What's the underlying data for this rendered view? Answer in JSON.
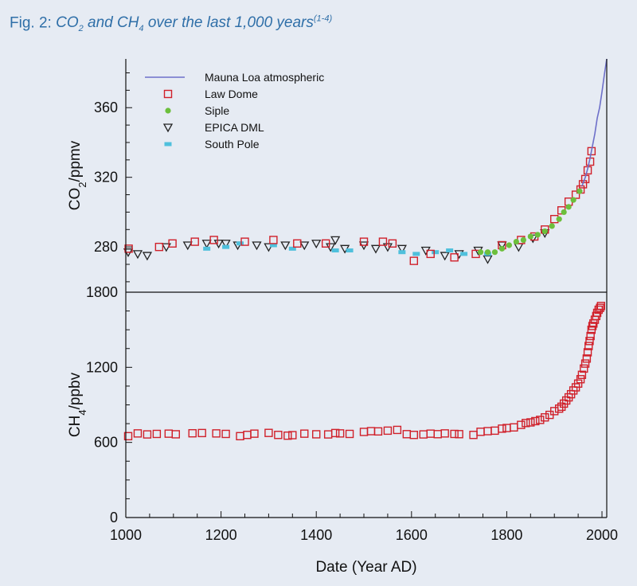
{
  "figure": {
    "label": "Fig. 2:",
    "caption_a": "CO",
    "caption_a_sub": "2",
    "caption_b": " and CH",
    "caption_b_sub": "4",
    "caption_c": " over the last 1,000 years",
    "caption_sup": "(1-4)"
  },
  "colors": {
    "background": "#e6ebf3",
    "mauna_loa": "#6d6fc9",
    "law_dome": "#d0202a",
    "siple": "#6cbf3c",
    "epica": "#222222",
    "south_pole": "#4fc0dc",
    "title": "#2f6fa8"
  },
  "chart_data": [
    {
      "type": "scatter",
      "name": "co2-panel",
      "ylabel_main": "CO",
      "ylabel_sub": "2",
      "ylabel_rest": "/ppmv",
      "xlim": [
        1000,
        2010
      ],
      "ylim": [
        254,
        388
      ],
      "yticks": [
        280,
        320,
        360
      ],
      "legend_position": "top-left",
      "legend": [
        {
          "key": "mauna_loa",
          "label": "Mauna Loa atmospheric",
          "marker": "line"
        },
        {
          "key": "law_dome",
          "label": "Law Dome",
          "marker": "square"
        },
        {
          "key": "siple",
          "label": "Siple",
          "marker": "circle"
        },
        {
          "key": "epica",
          "label": "EPICA DML",
          "marker": "triangle"
        },
        {
          "key": "south_pole",
          "label": "South Pole",
          "marker": "rect"
        }
      ],
      "series": {
        "mauna_loa": {
          "x": [
            1958,
            1965,
            1970,
            1975,
            1980,
            1985,
            1990,
            1995,
            2000,
            2005,
            2010
          ],
          "y": [
            315,
            320,
            325,
            331,
            338,
            345,
            354,
            360,
            369,
            379,
            388
          ]
        },
        "law_dome": {
          "x": [
            1006,
            1070,
            1098,
            1145,
            1185,
            1250,
            1310,
            1360,
            1420,
            1500,
            1540,
            1560,
            1605,
            1640,
            1690,
            1735,
            1790,
            1830,
            1858,
            1880,
            1900,
            1915,
            1930,
            1945,
            1955,
            1960,
            1965,
            1970,
            1975,
            1978
          ],
          "y": [
            279,
            280,
            282,
            283,
            284,
            283,
            284,
            282,
            282,
            283,
            283,
            282,
            272,
            276,
            274,
            276,
            281,
            284,
            286,
            290,
            296,
            301,
            306,
            310,
            313,
            316,
            319,
            324,
            329,
            335
          ]
        },
        "siple": {
          "x": [
            1745,
            1760,
            1775,
            1790,
            1805,
            1820,
            1835,
            1850,
            1865,
            1880,
            1895,
            1910,
            1920,
            1930,
            1940,
            1953
          ],
          "y": [
            277,
            277,
            277,
            279,
            281,
            283,
            284,
            286,
            287,
            289,
            292,
            296,
            300,
            303,
            307,
            312
          ]
        },
        "epica": {
          "x": [
            1005,
            1025,
            1045,
            1085,
            1130,
            1170,
            1195,
            1210,
            1235,
            1275,
            1300,
            1335,
            1375,
            1400,
            1430,
            1440,
            1460,
            1500,
            1525,
            1550,
            1580,
            1630,
            1670,
            1700,
            1740,
            1760,
            1790,
            1825,
            1855,
            1880
          ],
          "y": [
            277,
            276,
            275,
            280,
            281,
            282,
            282,
            282,
            281,
            281,
            280,
            281,
            281,
            282,
            280,
            284,
            279,
            281,
            279,
            280,
            279,
            278,
            275,
            276,
            278,
            273,
            281,
            280,
            285,
            288
          ]
        },
        "south_pole": {
          "x": [
            1170,
            1210,
            1240,
            1310,
            1350,
            1440,
            1470,
            1580,
            1610,
            1650,
            1680,
            1710,
            1760
          ],
          "y": [
            279,
            280,
            282,
            281,
            279,
            278,
            278,
            277,
            276,
            277,
            278,
            276,
            276
          ]
        }
      }
    },
    {
      "type": "scatter",
      "name": "ch4-panel",
      "ylabel_main": "CH",
      "ylabel_sub": "4",
      "ylabel_rest": "/ppbv",
      "xlabel": "Date (Year AD)",
      "xlim": [
        1000,
        2010
      ],
      "ylim": [
        0,
        1800
      ],
      "yticks": [
        0,
        600,
        1200,
        1800
      ],
      "xticks": [
        1000,
        1200,
        1400,
        1600,
        1800,
        2000
      ],
      "series": {
        "law_dome": {
          "x": [
            1005,
            1025,
            1045,
            1065,
            1090,
            1105,
            1140,
            1160,
            1190,
            1210,
            1240,
            1255,
            1270,
            1300,
            1320,
            1340,
            1350,
            1375,
            1400,
            1425,
            1440,
            1450,
            1470,
            1500,
            1515,
            1530,
            1550,
            1570,
            1590,
            1605,
            1625,
            1640,
            1655,
            1670,
            1690,
            1700,
            1730,
            1745,
            1760,
            1775,
            1790,
            1800,
            1815,
            1830,
            1840,
            1850,
            1860,
            1870,
            1880,
            1890,
            1900,
            1910,
            1915,
            1920,
            1925,
            1930,
            1935,
            1940,
            1945,
            1950,
            1955,
            1958,
            1962,
            1965,
            1968,
            1970,
            1972,
            1974,
            1976,
            1978,
            1980,
            1982,
            1985,
            1988,
            1990,
            1993,
            1996,
            1998
          ],
          "y": [
            650,
            672,
            664,
            668,
            670,
            665,
            673,
            675,
            672,
            668,
            650,
            660,
            670,
            676,
            660,
            654,
            658,
            670,
            665,
            664,
            675,
            672,
            668,
            684,
            690,
            688,
            694,
            700,
            666,
            660,
            664,
            670,
            666,
            672,
            668,
            666,
            660,
            685,
            690,
            694,
            710,
            715,
            720,
            740,
            755,
            760,
            770,
            780,
            800,
            820,
            850,
            870,
            885,
            910,
            935,
            960,
            985,
            1015,
            1040,
            1070,
            1105,
            1140,
            1190,
            1230,
            1270,
            1320,
            1370,
            1410,
            1450,
            1500,
            1530,
            1550,
            1580,
            1610,
            1635,
            1660,
            1675,
            1690
          ]
        }
      }
    }
  ]
}
